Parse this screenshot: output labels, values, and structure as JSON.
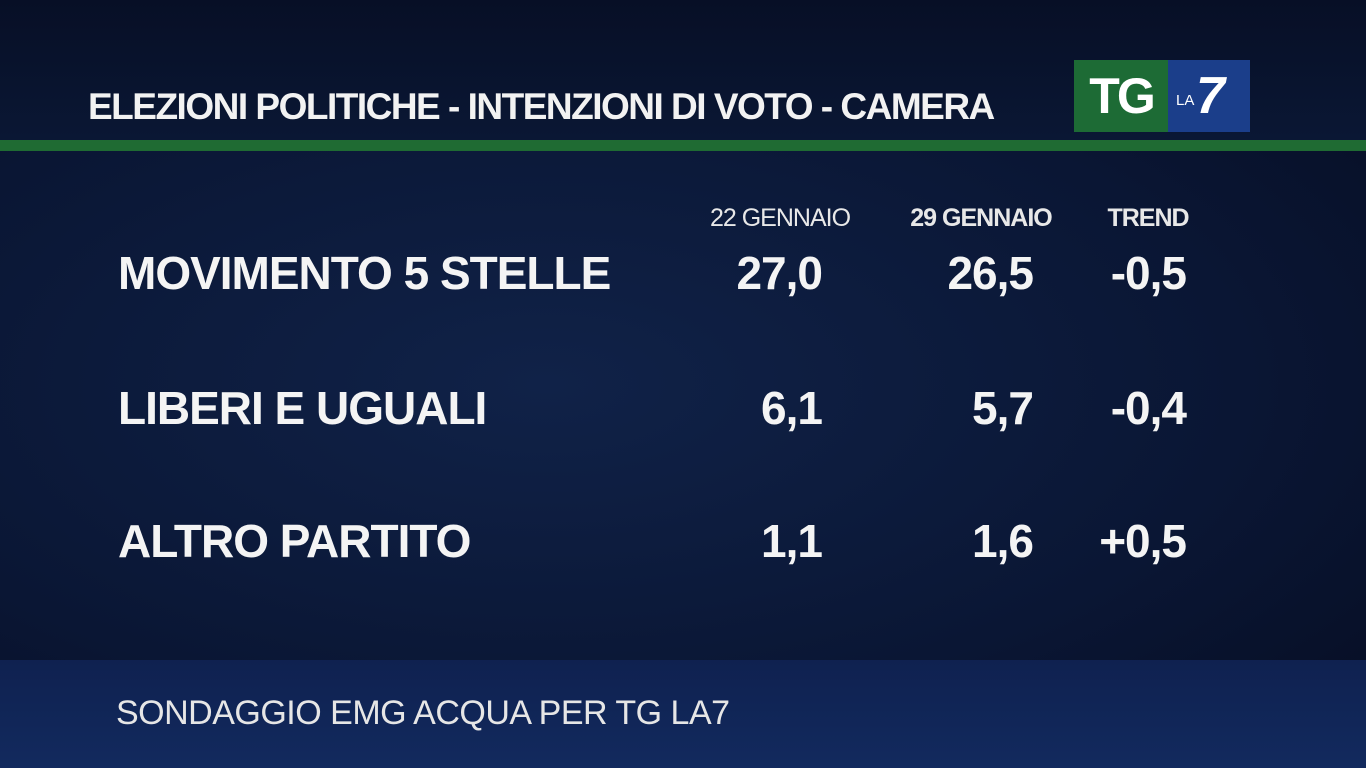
{
  "header": {
    "title": "ELEZIONI POLITICHE - INTENZIONI DI VOTO - CAMERA"
  },
  "logo": {
    "main": "TG",
    "sub": "LA",
    "number": "7"
  },
  "table": {
    "columns": [
      "22 GENNAIO",
      "29 GENNAIO",
      "TREND"
    ],
    "rows": [
      [
        "MOVIMENTO 5 STELLE",
        "27,0",
        "26,5",
        "-0,5"
      ],
      [
        "LIBERI E UGUALI",
        "6,1",
        "5,7",
        "-0,4"
      ],
      [
        "ALTRO PARTITO",
        "1,1",
        "1,6",
        "+0,5"
      ]
    ]
  },
  "footer": {
    "source": "SONDAGGIO EMG ACQUA PER TG LA7"
  }
}
